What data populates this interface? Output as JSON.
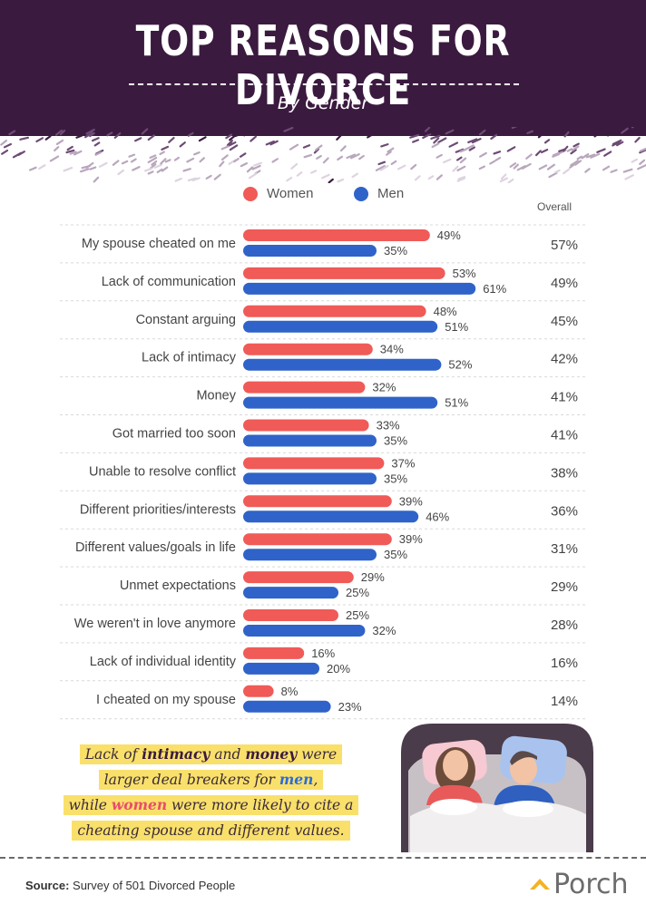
{
  "header": {
    "title": "TOP REASONS FOR DIVORCE",
    "subtitle": "By Gender"
  },
  "legend": {
    "women_label": "Women",
    "men_label": "Men",
    "overall_label": "Overall"
  },
  "colors": {
    "women": "#f05a57",
    "men": "#2f63c9",
    "header_bg": "#3b1a3f",
    "highlight": "#f9e06b"
  },
  "chart_data": {
    "type": "bar",
    "orientation": "horizontal",
    "categories": [
      "My spouse cheated on me",
      "Lack of communication",
      "Constant arguing",
      "Lack of intimacy",
      "Money",
      "Got married too soon",
      "Unable to resolve conflict",
      "Different priorities/interests",
      "Different values/goals in life",
      "Unmet expectations",
      "We weren't in love anymore",
      "Lack of individual identity",
      "I cheated on my spouse"
    ],
    "series": [
      {
        "name": "Women",
        "values": [
          49,
          53,
          48,
          34,
          32,
          33,
          37,
          39,
          39,
          29,
          25,
          16,
          8
        ]
      },
      {
        "name": "Men",
        "values": [
          35,
          61,
          51,
          52,
          51,
          35,
          35,
          46,
          35,
          25,
          32,
          20,
          23
        ]
      }
    ],
    "overall": [
      57,
      49,
      45,
      42,
      41,
      41,
      38,
      36,
      31,
      29,
      28,
      16,
      14
    ],
    "value_suffix": "%",
    "legend_position": "top"
  },
  "callout": {
    "line1_a": "Lack of ",
    "line1_b": "intimacy",
    "line1_c": " and ",
    "line1_d": "money",
    "line1_e": " were",
    "line2_a": "larger deal breakers for ",
    "line2_b": "men",
    "line2_c": ",",
    "line3_a": "while ",
    "line3_b": "women",
    "line3_c": " were more likely to cite a",
    "line4": "cheating spouse and different values."
  },
  "footer": {
    "source_label": "Source:",
    "source_text": " Survey of 501 Divorced People",
    "brand": "Porch"
  }
}
